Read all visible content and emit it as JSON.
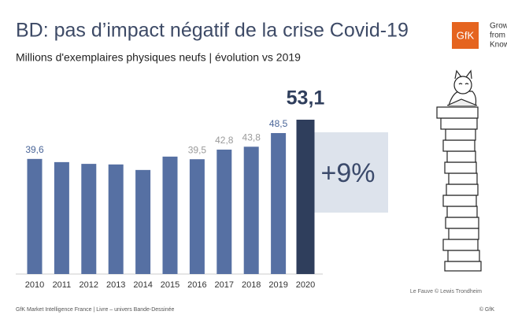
{
  "chart_data": {
    "type": "bar",
    "title": "BD: pas d’impact négatif de la crise Covid-19",
    "subtitle": "Millions d'exemplaires physiques neufs | évolution vs 2019",
    "categories": [
      "2010",
      "2011",
      "2012",
      "2013",
      "2014",
      "2015",
      "2016",
      "2017",
      "2018",
      "2019",
      "2020"
    ],
    "values": [
      39.6,
      38.5,
      37.9,
      37.7,
      35.8,
      40.4,
      39.5,
      42.8,
      43.8,
      48.5,
      53.1
    ],
    "value_labels": [
      "39,6",
      null,
      null,
      null,
      null,
      null,
      "39,5",
      "42,8",
      "43,8",
      "48,5",
      "53,1"
    ],
    "label_colors": [
      "#4a6598",
      null,
      null,
      null,
      null,
      null,
      "#9a9a9a",
      "#9a9a9a",
      "#9a9a9a",
      "#4a6598",
      "#2f3e5c"
    ],
    "color": "#5670a3",
    "highlight_color": "#2f3e5c",
    "annotation": "+9%",
    "logo": {
      "mark": "GfK",
      "lines": [
        "Grow",
        "from",
        "Know"
      ]
    },
    "caption": "Le Fauve © Lewis Trondheim",
    "footer": "GfK Market Intelligence France | Livre – univers Bande-Dessinée",
    "copyright": "© GfK"
  }
}
